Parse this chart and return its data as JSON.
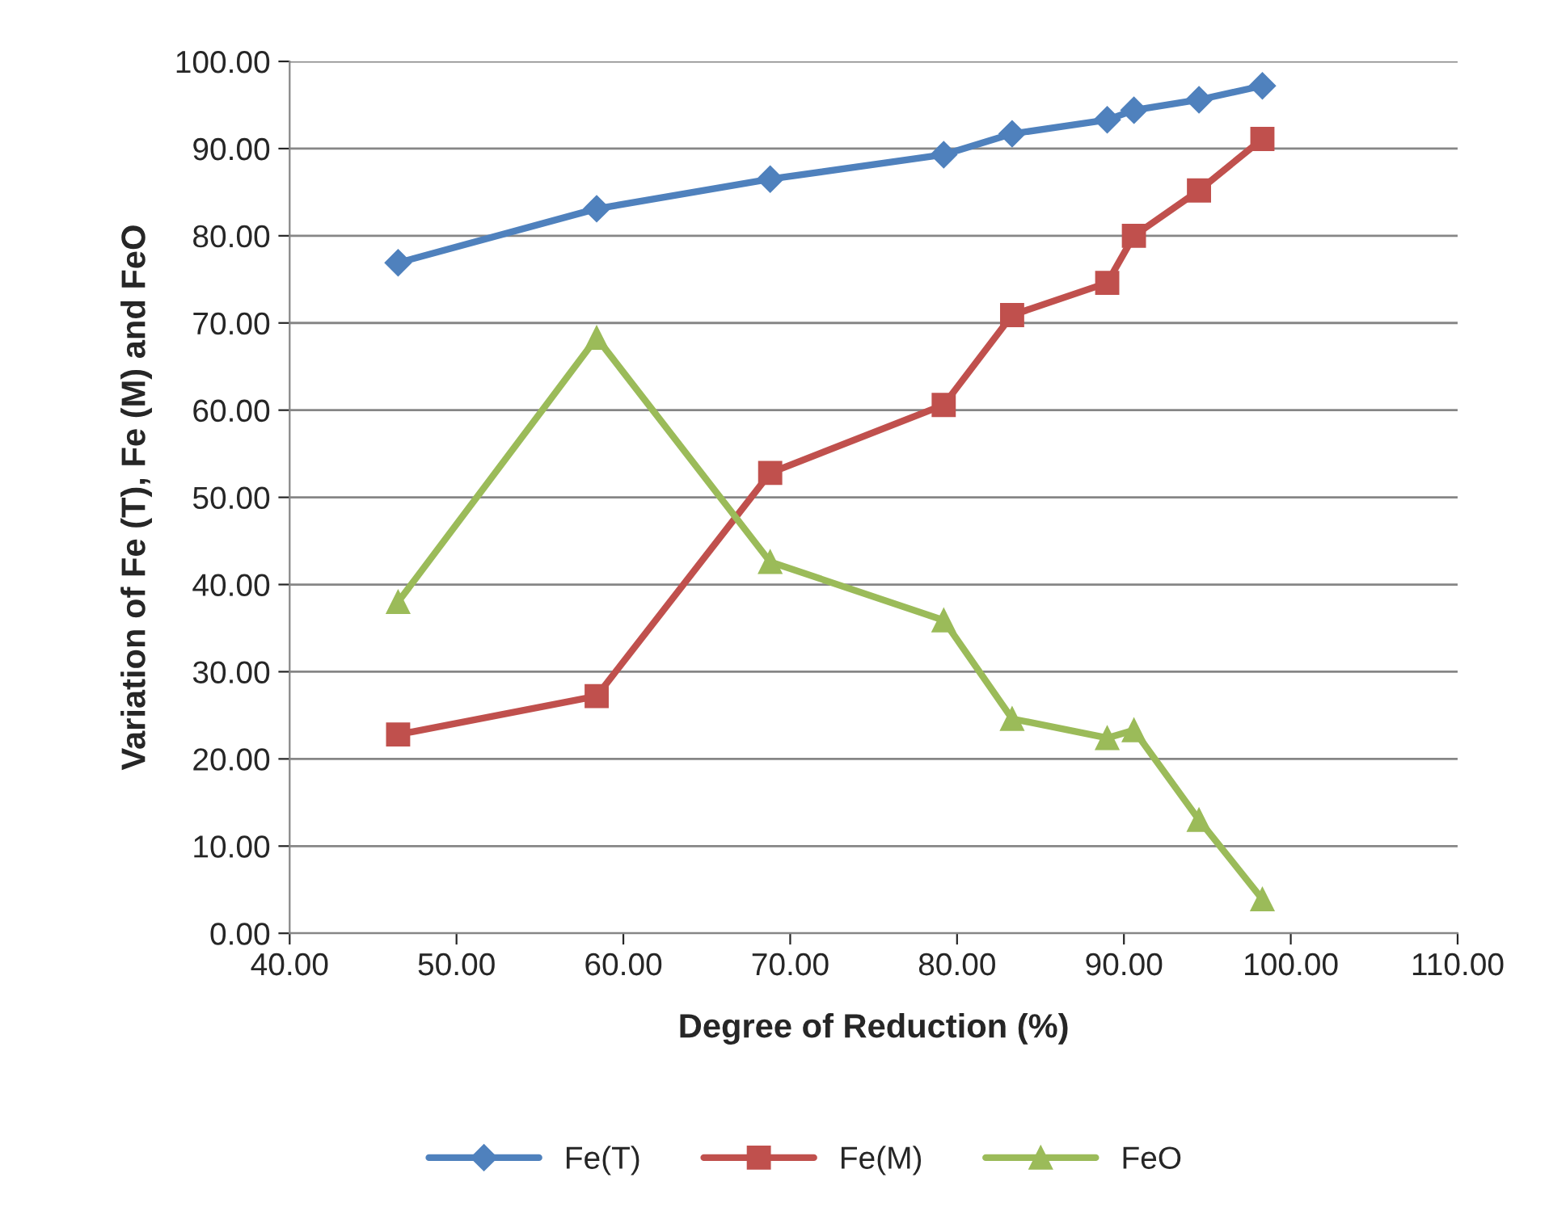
{
  "chart_data": {
    "type": "line",
    "xlabel": "Degree of Reduction (%)",
    "ylabel": "Variation of Fe (T), Fe (M) and FeO",
    "x": [
      46.5,
      58.4,
      68.8,
      79.2,
      83.3,
      89.0,
      90.6,
      94.5,
      98.3
    ],
    "series": [
      {
        "name": "Fe(T)",
        "color": "#4f81bd",
        "marker": "diamond",
        "values": [
          76.9,
          83.1,
          86.5,
          89.3,
          91.7,
          93.3,
          94.4,
          95.6,
          97.2
        ]
      },
      {
        "name": "Fe(M)",
        "color": "#c0504d",
        "marker": "square",
        "values": [
          22.8,
          27.2,
          52.8,
          60.6,
          70.9,
          74.6,
          80.0,
          85.2,
          91.1
        ]
      },
      {
        "name": "FeO",
        "color": "#9bbb59",
        "marker": "triangle",
        "values": [
          38.0,
          68.3,
          42.6,
          35.9,
          24.6,
          22.4,
          23.3,
          13.0,
          3.9
        ]
      }
    ],
    "xlim": [
      40,
      110
    ],
    "xticks": [
      {
        "value": 40,
        "label": "40.00"
      },
      {
        "value": 50,
        "label": "50.00"
      },
      {
        "value": 60,
        "label": "60.00"
      },
      {
        "value": 70,
        "label": "70.00"
      },
      {
        "value": 80,
        "label": "80.00"
      },
      {
        "value": 90,
        "label": "90.00"
      },
      {
        "value": 100,
        "label": "100.00"
      },
      {
        "value": 110,
        "label": "110.00"
      }
    ],
    "ylim": [
      0,
      100
    ],
    "yticks": [
      {
        "value": 0,
        "label": "0.00"
      },
      {
        "value": 10,
        "label": "10.00"
      },
      {
        "value": 20,
        "label": "20.00"
      },
      {
        "value": 30,
        "label": "30.00"
      },
      {
        "value": 40,
        "label": "40.00"
      },
      {
        "value": 50,
        "label": "50.00"
      },
      {
        "value": 60,
        "label": "60.00"
      },
      {
        "value": 70,
        "label": "70.00"
      },
      {
        "value": 80,
        "label": "80.00"
      },
      {
        "value": 90,
        "label": "90.00"
      },
      {
        "value": 100,
        "label": "100.00"
      }
    ],
    "grid": "y",
    "legend": "bottom",
    "line_style": "solid"
  }
}
